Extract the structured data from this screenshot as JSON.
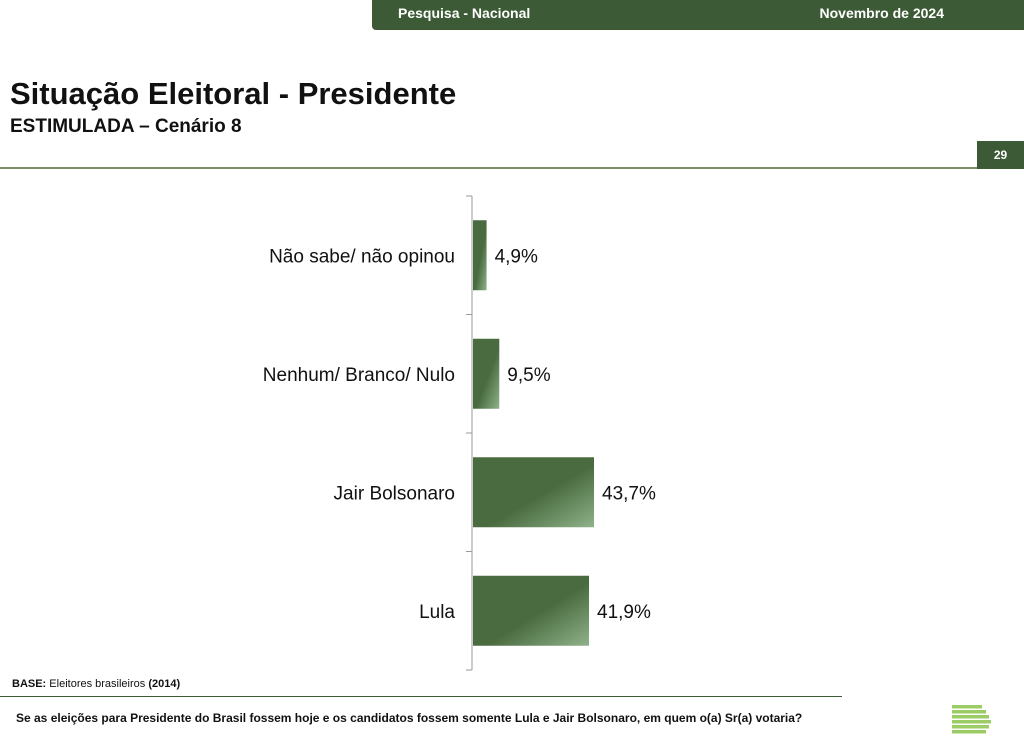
{
  "header": {
    "survey": "Pesquisa - Nacional",
    "date": "Novembro de 2024"
  },
  "title": "Situação Eleitoral - Presidente",
  "subtitle": "ESTIMULADA – Cenário 8",
  "page_number": "29",
  "footer": {
    "base_label": "BASE:",
    "base_text": "Eleitores brasileiros",
    "base_n": "(2014)",
    "question": "Se as eleições para Presidente do Brasil fossem hoje e os candidatos fossem somente Lula e Jair Bolsonaro, em quem o(a) Sr(a) votaria?"
  },
  "colors": {
    "brand": "#3c5a35",
    "bar": "#4a6b3f",
    "bar_light": "#8fb28a",
    "logo": "#9ccc65"
  },
  "icons": {
    "logo": "stacked-bars-logo"
  },
  "chart_data": {
    "type": "bar",
    "orientation": "horizontal",
    "categories": [
      "Não sabe/ não opinou",
      "Nenhum/ Branco/ Nulo",
      "Jair Bolsonaro",
      "Lula"
    ],
    "values": [
      4.9,
      9.5,
      43.7,
      41.9
    ],
    "value_labels": [
      "4,9%",
      "9,5%",
      "43,7%",
      "41,9%"
    ],
    "unit": "%",
    "xlim": [
      0,
      100
    ]
  }
}
